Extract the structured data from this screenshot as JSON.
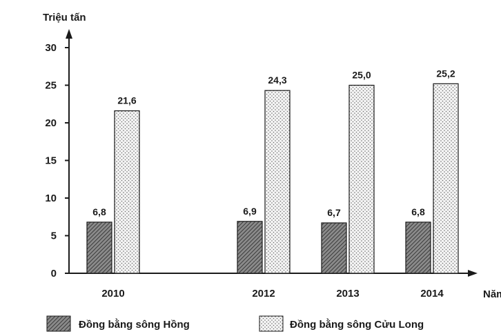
{
  "chart_data": {
    "type": "bar",
    "title": "",
    "ylabel": "Triệu tấn",
    "xlabel": "Năm",
    "categories": [
      "2010",
      "2012",
      "2013",
      "2014"
    ],
    "series": [
      {
        "name": "Đồng bằng sông Hồng",
        "values": [
          6.8,
          6.9,
          6.7,
          6.8
        ],
        "value_labels": [
          "6,8",
          "6,9",
          "6,7",
          "6,8"
        ],
        "pattern": "hatch",
        "color": "#6e6e6e"
      },
      {
        "name": "Đồng bằng sông Cửu Long",
        "values": [
          21.6,
          24.3,
          25.0,
          25.2
        ],
        "value_labels": [
          "21,6",
          "24,3",
          "25,0",
          "25,2"
        ],
        "pattern": "dots",
        "color": "#f2f2f2"
      }
    ],
    "yticks": [
      0,
      5,
      10,
      15,
      20,
      25,
      30
    ],
    "ylim": [
      0,
      30
    ],
    "grid": false,
    "legend_position": "bottom"
  }
}
